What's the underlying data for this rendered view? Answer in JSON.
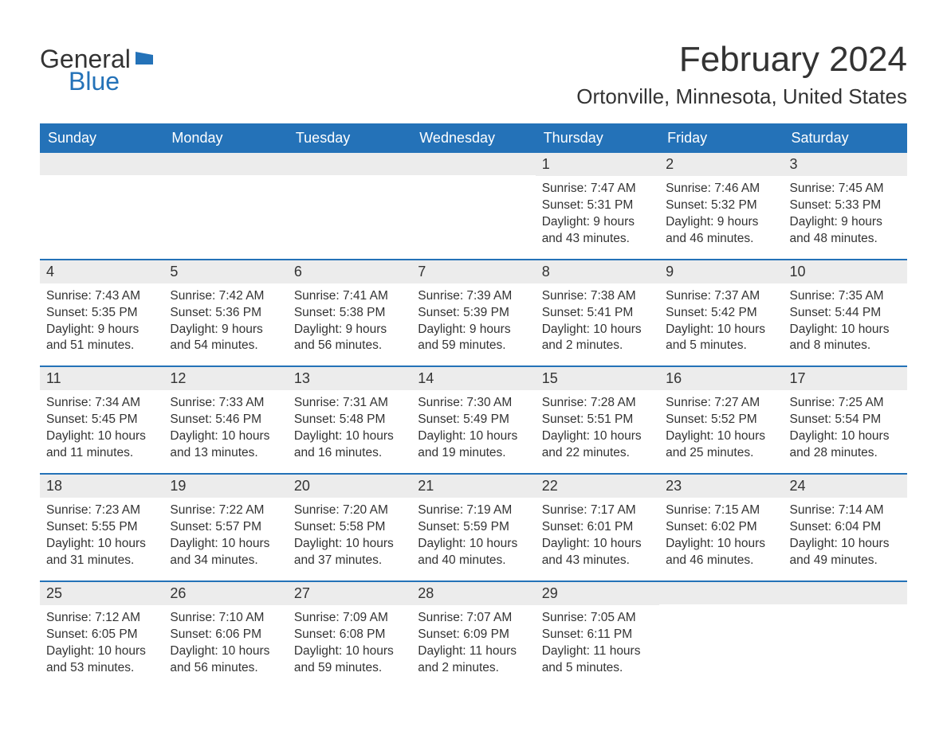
{
  "logo": {
    "line1": "General",
    "line2": "Blue",
    "icon_color": "#2472b8"
  },
  "title": "February 2024",
  "location": "Ortonville, Minnesota, United States",
  "colors": {
    "header_bg": "#2472b8",
    "header_text": "#ffffff",
    "daynum_bg": "#ececec",
    "text": "#333333",
    "rule": "#2472b8",
    "page_bg": "#ffffff"
  },
  "fonts": {
    "title_size_pt": 33,
    "location_size_pt": 20,
    "dow_size_pt": 14,
    "body_size_pt": 12
  },
  "days_of_week": [
    "Sunday",
    "Monday",
    "Tuesday",
    "Wednesday",
    "Thursday",
    "Friday",
    "Saturday"
  ],
  "weeks": [
    [
      null,
      null,
      null,
      null,
      {
        "n": "1",
        "sunrise": "Sunrise: 7:47 AM",
        "sunset": "Sunset: 5:31 PM",
        "daylight": "Daylight: 9 hours and 43 minutes."
      },
      {
        "n": "2",
        "sunrise": "Sunrise: 7:46 AM",
        "sunset": "Sunset: 5:32 PM",
        "daylight": "Daylight: 9 hours and 46 minutes."
      },
      {
        "n": "3",
        "sunrise": "Sunrise: 7:45 AM",
        "sunset": "Sunset: 5:33 PM",
        "daylight": "Daylight: 9 hours and 48 minutes."
      }
    ],
    [
      {
        "n": "4",
        "sunrise": "Sunrise: 7:43 AM",
        "sunset": "Sunset: 5:35 PM",
        "daylight": "Daylight: 9 hours and 51 minutes."
      },
      {
        "n": "5",
        "sunrise": "Sunrise: 7:42 AM",
        "sunset": "Sunset: 5:36 PM",
        "daylight": "Daylight: 9 hours and 54 minutes."
      },
      {
        "n": "6",
        "sunrise": "Sunrise: 7:41 AM",
        "sunset": "Sunset: 5:38 PM",
        "daylight": "Daylight: 9 hours and 56 minutes."
      },
      {
        "n": "7",
        "sunrise": "Sunrise: 7:39 AM",
        "sunset": "Sunset: 5:39 PM",
        "daylight": "Daylight: 9 hours and 59 minutes."
      },
      {
        "n": "8",
        "sunrise": "Sunrise: 7:38 AM",
        "sunset": "Sunset: 5:41 PM",
        "daylight": "Daylight: 10 hours and 2 minutes."
      },
      {
        "n": "9",
        "sunrise": "Sunrise: 7:37 AM",
        "sunset": "Sunset: 5:42 PM",
        "daylight": "Daylight: 10 hours and 5 minutes."
      },
      {
        "n": "10",
        "sunrise": "Sunrise: 7:35 AM",
        "sunset": "Sunset: 5:44 PM",
        "daylight": "Daylight: 10 hours and 8 minutes."
      }
    ],
    [
      {
        "n": "11",
        "sunrise": "Sunrise: 7:34 AM",
        "sunset": "Sunset: 5:45 PM",
        "daylight": "Daylight: 10 hours and 11 minutes."
      },
      {
        "n": "12",
        "sunrise": "Sunrise: 7:33 AM",
        "sunset": "Sunset: 5:46 PM",
        "daylight": "Daylight: 10 hours and 13 minutes."
      },
      {
        "n": "13",
        "sunrise": "Sunrise: 7:31 AM",
        "sunset": "Sunset: 5:48 PM",
        "daylight": "Daylight: 10 hours and 16 minutes."
      },
      {
        "n": "14",
        "sunrise": "Sunrise: 7:30 AM",
        "sunset": "Sunset: 5:49 PM",
        "daylight": "Daylight: 10 hours and 19 minutes."
      },
      {
        "n": "15",
        "sunrise": "Sunrise: 7:28 AM",
        "sunset": "Sunset: 5:51 PM",
        "daylight": "Daylight: 10 hours and 22 minutes."
      },
      {
        "n": "16",
        "sunrise": "Sunrise: 7:27 AM",
        "sunset": "Sunset: 5:52 PM",
        "daylight": "Daylight: 10 hours and 25 minutes."
      },
      {
        "n": "17",
        "sunrise": "Sunrise: 7:25 AM",
        "sunset": "Sunset: 5:54 PM",
        "daylight": "Daylight: 10 hours and 28 minutes."
      }
    ],
    [
      {
        "n": "18",
        "sunrise": "Sunrise: 7:23 AM",
        "sunset": "Sunset: 5:55 PM",
        "daylight": "Daylight: 10 hours and 31 minutes."
      },
      {
        "n": "19",
        "sunrise": "Sunrise: 7:22 AM",
        "sunset": "Sunset: 5:57 PM",
        "daylight": "Daylight: 10 hours and 34 minutes."
      },
      {
        "n": "20",
        "sunrise": "Sunrise: 7:20 AM",
        "sunset": "Sunset: 5:58 PM",
        "daylight": "Daylight: 10 hours and 37 minutes."
      },
      {
        "n": "21",
        "sunrise": "Sunrise: 7:19 AM",
        "sunset": "Sunset: 5:59 PM",
        "daylight": "Daylight: 10 hours and 40 minutes."
      },
      {
        "n": "22",
        "sunrise": "Sunrise: 7:17 AM",
        "sunset": "Sunset: 6:01 PM",
        "daylight": "Daylight: 10 hours and 43 minutes."
      },
      {
        "n": "23",
        "sunrise": "Sunrise: 7:15 AM",
        "sunset": "Sunset: 6:02 PM",
        "daylight": "Daylight: 10 hours and 46 minutes."
      },
      {
        "n": "24",
        "sunrise": "Sunrise: 7:14 AM",
        "sunset": "Sunset: 6:04 PM",
        "daylight": "Daylight: 10 hours and 49 minutes."
      }
    ],
    [
      {
        "n": "25",
        "sunrise": "Sunrise: 7:12 AM",
        "sunset": "Sunset: 6:05 PM",
        "daylight": "Daylight: 10 hours and 53 minutes."
      },
      {
        "n": "26",
        "sunrise": "Sunrise: 7:10 AM",
        "sunset": "Sunset: 6:06 PM",
        "daylight": "Daylight: 10 hours and 56 minutes."
      },
      {
        "n": "27",
        "sunrise": "Sunrise: 7:09 AM",
        "sunset": "Sunset: 6:08 PM",
        "daylight": "Daylight: 10 hours and 59 minutes."
      },
      {
        "n": "28",
        "sunrise": "Sunrise: 7:07 AM",
        "sunset": "Sunset: 6:09 PM",
        "daylight": "Daylight: 11 hours and 2 minutes."
      },
      {
        "n": "29",
        "sunrise": "Sunrise: 7:05 AM",
        "sunset": "Sunset: 6:11 PM",
        "daylight": "Daylight: 11 hours and 5 minutes."
      },
      null,
      null
    ]
  ]
}
